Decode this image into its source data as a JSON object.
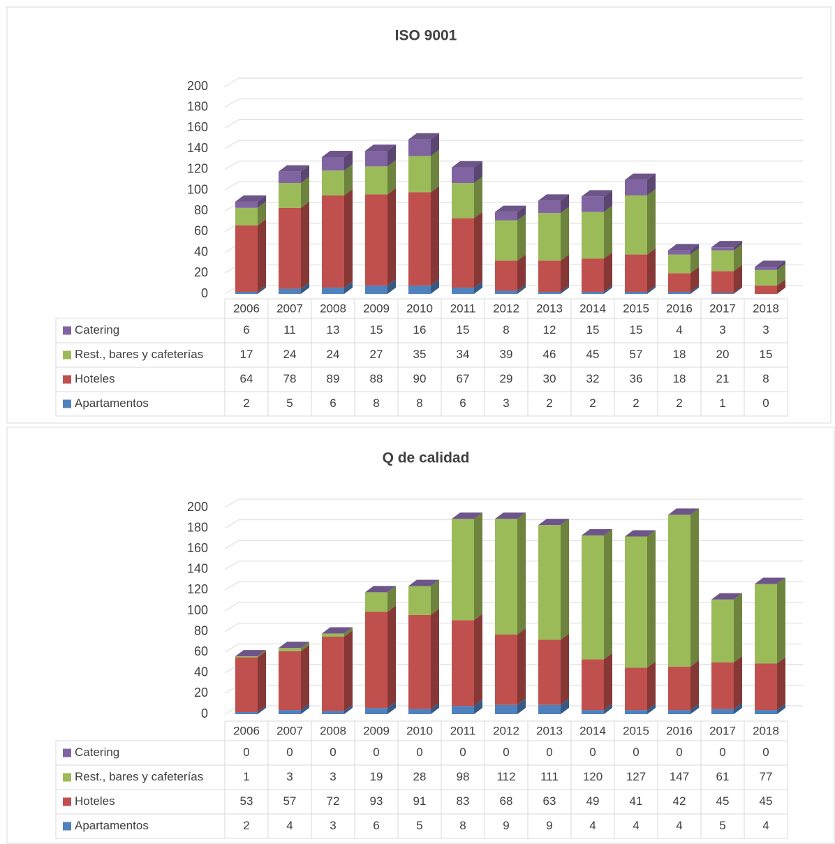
{
  "chart_data": [
    {
      "type": "bar",
      "title": "ISO 9001",
      "categories": [
        "2006",
        "2007",
        "2008",
        "2009",
        "2010",
        "2011",
        "2012",
        "2013",
        "2014",
        "2015",
        "2016",
        "2017",
        "2018"
      ],
      "ylim": [
        0,
        200
      ],
      "yticks": [
        0,
        20,
        40,
        60,
        80,
        100,
        120,
        140,
        160,
        180,
        200
      ],
      "grid": true,
      "stacked": true,
      "series": [
        {
          "name": "Apartamentos",
          "color": "#4f81bd",
          "values": [
            2,
            5,
            6,
            8,
            8,
            6,
            3,
            2,
            2,
            2,
            2,
            1,
            0
          ]
        },
        {
          "name": "Hoteles",
          "color": "#c0504d",
          "values": [
            64,
            78,
            89,
            88,
            90,
            67,
            29,
            30,
            32,
            36,
            18,
            21,
            8
          ]
        },
        {
          "name": "Rest., bares y cafeterías",
          "color": "#9bbb59",
          "values": [
            17,
            24,
            24,
            27,
            35,
            34,
            39,
            46,
            45,
            57,
            18,
            20,
            15
          ]
        },
        {
          "name": "Catering",
          "color": "#8064a2",
          "values": [
            6,
            11,
            13,
            15,
            16,
            15,
            8,
            12,
            15,
            15,
            4,
            3,
            3
          ]
        }
      ]
    },
    {
      "type": "bar",
      "title": "Q de calidad",
      "categories": [
        "2006",
        "2007",
        "2008",
        "2009",
        "2010",
        "2011",
        "2012",
        "2013",
        "2014",
        "2015",
        "2016",
        "2017",
        "2018"
      ],
      "ylim": [
        0,
        200
      ],
      "yticks": [
        0,
        20,
        40,
        60,
        80,
        100,
        120,
        140,
        160,
        180,
        200
      ],
      "grid": true,
      "stacked": true,
      "series": [
        {
          "name": "Apartamentos",
          "color": "#4f81bd",
          "values": [
            2,
            4,
            3,
            6,
            5,
            8,
            9,
            9,
            4,
            4,
            4,
            5,
            4
          ]
        },
        {
          "name": "Hoteles",
          "color": "#c0504d",
          "values": [
            53,
            57,
            72,
            93,
            91,
            83,
            68,
            63,
            49,
            41,
            42,
            45,
            45
          ]
        },
        {
          "name": "Rest., bares y cafeterías",
          "color": "#9bbb59",
          "values": [
            1,
            3,
            3,
            19,
            28,
            98,
            112,
            111,
            120,
            127,
            147,
            61,
            77
          ]
        },
        {
          "name": "Catering",
          "color": "#8064a2",
          "values": [
            0,
            0,
            0,
            0,
            0,
            0,
            0,
            0,
            0,
            0,
            0,
            0,
            0
          ]
        }
      ]
    }
  ]
}
